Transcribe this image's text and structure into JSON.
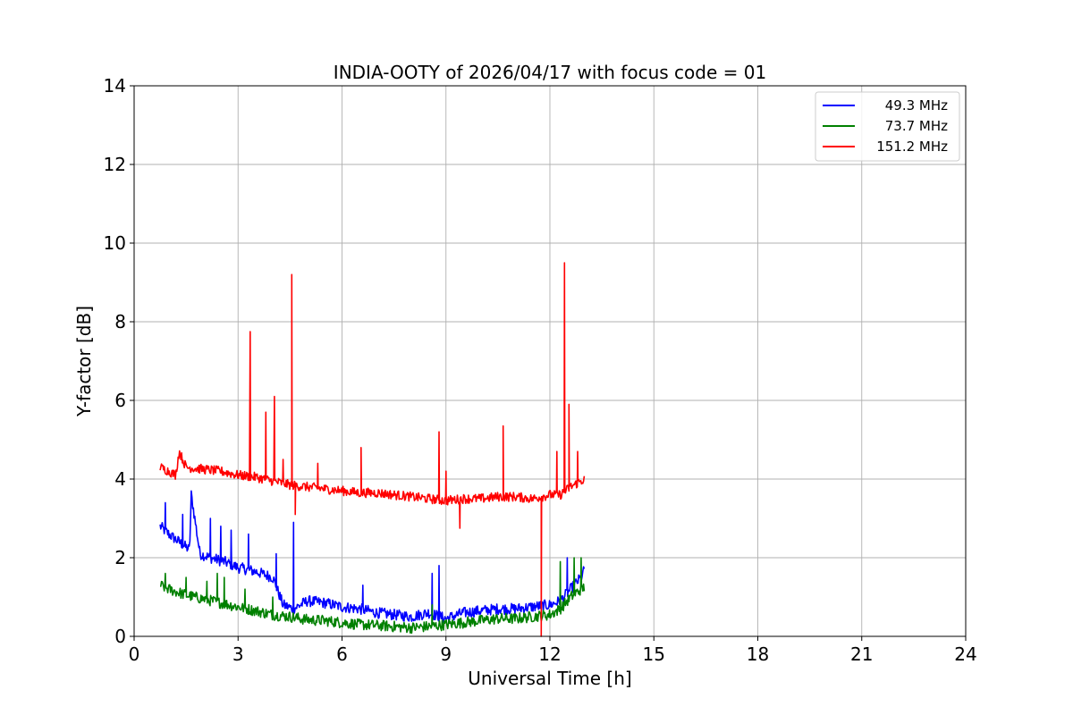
{
  "chart_data": {
    "type": "line",
    "title": "INDIA-OOTY of 2026/04/17 with focus code = 01",
    "xlabel": "Universal Time [h]",
    "ylabel": "Y-factor [dB]",
    "xlim": [
      0,
      24
    ],
    "ylim": [
      0,
      14
    ],
    "xticks": [
      0,
      3,
      6,
      9,
      12,
      15,
      18,
      21,
      24
    ],
    "yticks": [
      0,
      2,
      4,
      6,
      8,
      10,
      12,
      14
    ],
    "grid": true,
    "legend_position": "top-right",
    "series": [
      {
        "name": "49.3 MHz",
        "color": "#0000ff",
        "x": [
          0.75,
          1.0,
          1.3,
          1.6,
          1.65,
          1.9,
          2.2,
          2.6,
          3.0,
          3.5,
          4.0,
          4.3,
          4.6,
          5.0,
          5.5,
          6.0,
          6.5,
          7.0,
          7.5,
          8.0,
          8.5,
          9.0,
          9.5,
          10.0,
          10.5,
          11.0,
          11.5,
          12.0,
          12.3,
          12.6,
          12.9,
          13.0
        ],
        "values": [
          2.8,
          2.6,
          2.4,
          2.2,
          3.6,
          2.1,
          2.0,
          1.9,
          1.75,
          1.65,
          1.5,
          0.8,
          0.7,
          0.9,
          0.85,
          0.75,
          0.7,
          0.6,
          0.55,
          0.5,
          0.6,
          0.45,
          0.6,
          0.65,
          0.7,
          0.7,
          0.75,
          0.8,
          0.9,
          1.2,
          1.5,
          1.7
        ],
        "spikes": [
          [
            0.9,
            3.4
          ],
          [
            1.4,
            3.1
          ],
          [
            2.2,
            3.0
          ],
          [
            2.5,
            2.8
          ],
          [
            2.8,
            2.7
          ],
          [
            3.3,
            2.6
          ],
          [
            4.1,
            2.1
          ],
          [
            4.6,
            2.9
          ],
          [
            6.6,
            1.3
          ],
          [
            8.6,
            1.6
          ],
          [
            8.8,
            1.8
          ],
          [
            12.5,
            2.0
          ]
        ]
      },
      {
        "name": "73.7 MHz",
        "color": "#008000",
        "x": [
          0.75,
          1.0,
          1.5,
          2.0,
          2.5,
          3.0,
          3.5,
          4.0,
          4.5,
          5.0,
          5.5,
          6.0,
          6.5,
          7.0,
          7.5,
          8.0,
          8.5,
          9.0,
          9.5,
          10.0,
          10.5,
          11.0,
          11.5,
          12.0,
          12.3,
          12.6,
          12.9,
          13.0
        ],
        "values": [
          1.3,
          1.2,
          1.05,
          0.95,
          0.85,
          0.75,
          0.65,
          0.55,
          0.5,
          0.42,
          0.4,
          0.35,
          0.3,
          0.28,
          0.25,
          0.22,
          0.25,
          0.3,
          0.35,
          0.4,
          0.45,
          0.45,
          0.5,
          0.55,
          0.7,
          1.0,
          1.2,
          1.25
        ],
        "spikes": [
          [
            0.9,
            1.6
          ],
          [
            1.5,
            1.5
          ],
          [
            2.1,
            1.4
          ],
          [
            2.4,
            1.6
          ],
          [
            2.6,
            1.5
          ],
          [
            3.2,
            1.2
          ],
          [
            4.0,
            1.0
          ],
          [
            8.6,
            0.8
          ],
          [
            12.3,
            1.9
          ],
          [
            12.7,
            2.0
          ],
          [
            12.9,
            2.0
          ]
        ]
      },
      {
        "name": "151.2 MHz",
        "color": "#ff0000",
        "x": [
          0.75,
          1.0,
          1.2,
          1.3,
          1.5,
          2.0,
          2.5,
          3.0,
          3.5,
          4.0,
          4.5,
          5.0,
          5.5,
          6.0,
          6.5,
          7.0,
          7.5,
          8.0,
          8.5,
          9.0,
          9.5,
          10.0,
          10.5,
          11.0,
          11.5,
          12.0,
          12.3,
          12.6,
          12.9,
          13.0
        ],
        "values": [
          4.3,
          4.2,
          4.1,
          4.7,
          4.3,
          4.25,
          4.2,
          4.1,
          4.05,
          3.95,
          3.85,
          3.8,
          3.75,
          3.7,
          3.65,
          3.65,
          3.6,
          3.55,
          3.5,
          3.45,
          3.5,
          3.5,
          3.55,
          3.55,
          3.5,
          3.6,
          3.6,
          3.8,
          3.95,
          4.0
        ],
        "spikes": [
          [
            3.35,
            7.75
          ],
          [
            3.8,
            5.7
          ],
          [
            4.05,
            6.1
          ],
          [
            4.3,
            4.5
          ],
          [
            4.55,
            9.2
          ],
          [
            5.3,
            4.4
          ],
          [
            6.55,
            4.8
          ],
          [
            8.8,
            5.2
          ],
          [
            9.0,
            4.2
          ],
          [
            10.65,
            5.35
          ],
          [
            12.2,
            4.7
          ],
          [
            12.42,
            9.5
          ],
          [
            12.55,
            5.9
          ],
          [
            12.8,
            4.7
          ]
        ],
        "dips": [
          [
            4.65,
            3.1
          ],
          [
            9.4,
            2.75
          ],
          [
            11.75,
            0.0
          ]
        ]
      }
    ]
  }
}
